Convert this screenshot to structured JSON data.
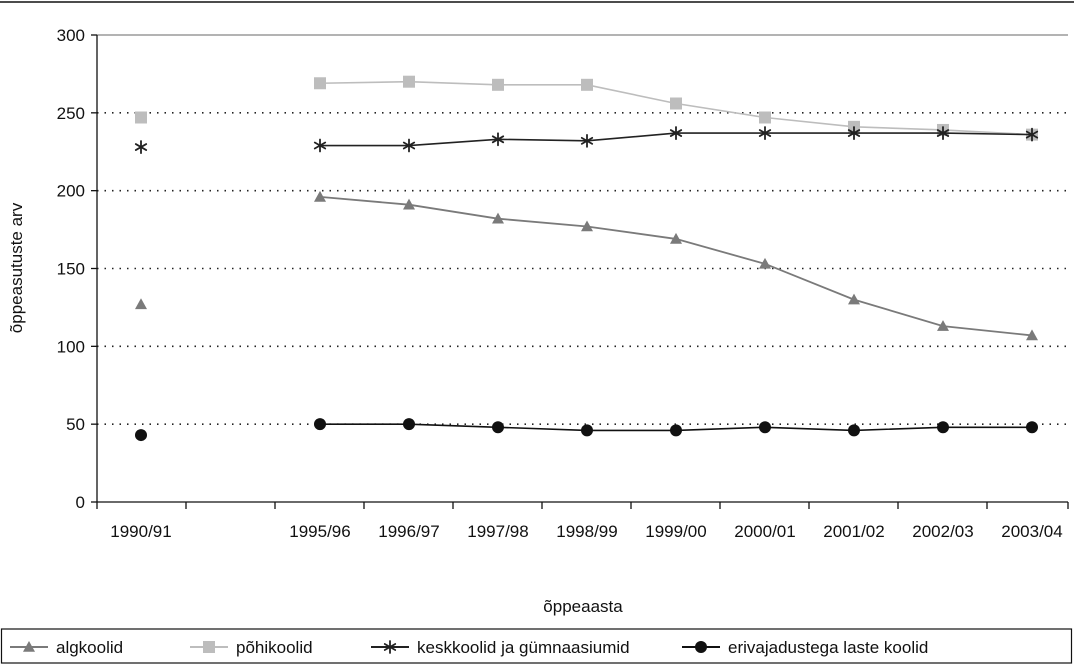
{
  "chart_data": {
    "type": "line",
    "title": "",
    "xlabel": "õppeaasta",
    "ylabel": "õppeasutuste arv",
    "ylim": [
      0,
      300
    ],
    "yticks": [
      "0",
      "50",
      "100",
      "150",
      "200",
      "250",
      "300"
    ],
    "grid": "horizontal dotted",
    "legend_position": "bottom",
    "categories": [
      "1990/91",
      "1995/96",
      "1996/97",
      "1997/98",
      "1998/99",
      "1999/00",
      "2000/01",
      "2001/02",
      "2002/03",
      "2003/04"
    ],
    "series": [
      {
        "name": "algkoolid",
        "marker": "triangle",
        "color": "#7a7a7a",
        "values": [
          127,
          196,
          191,
          182,
          177,
          169,
          153,
          130,
          113,
          107
        ]
      },
      {
        "name": "põhikoolid",
        "marker": "square",
        "color": "#bdbdbd",
        "values": [
          247,
          269,
          270,
          268,
          268,
          256,
          247,
          241,
          239,
          236
        ]
      },
      {
        "name": "keskkoolid ja gümnaasiumid",
        "marker": "asterisk",
        "color": "#222222",
        "values": [
          228,
          229,
          229,
          233,
          232,
          237,
          237,
          237,
          237,
          236
        ]
      },
      {
        "name": "erivajadustega laste koolid",
        "marker": "circle",
        "color": "#111111",
        "values": [
          43,
          50,
          50,
          48,
          46,
          46,
          48,
          46,
          48,
          48
        ]
      }
    ]
  }
}
